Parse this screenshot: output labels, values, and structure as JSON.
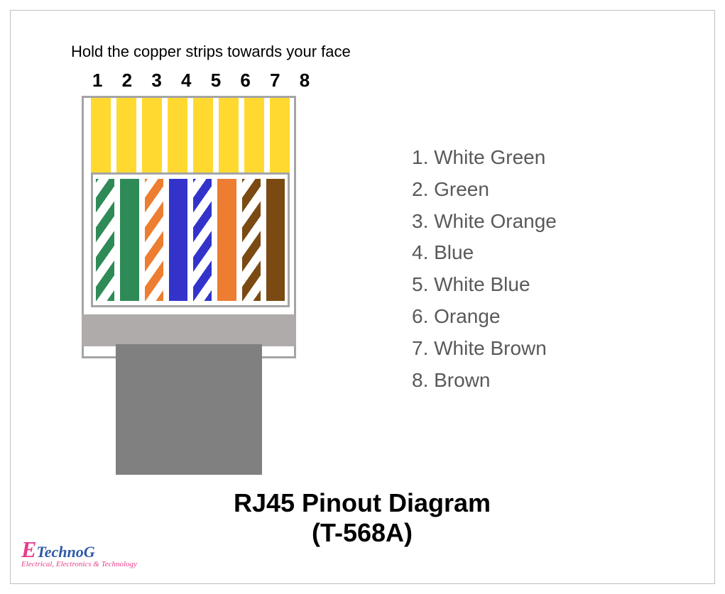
{
  "instruction": "Hold the copper strips towards your face",
  "pin_numbers": "1 2 3 4 5 6 7 8",
  "title_line1": "RJ45 Pinout Diagram",
  "title_line2": "(T-568A)",
  "logo_brand_E": "E",
  "logo_brand_rest": "TechnoG",
  "logo_tagline": "Electrical, Electronics & Technology",
  "contact_color": "#ffd92f",
  "connector": {
    "outline_color": "#a5a5a5",
    "strain_color": "#afabab",
    "cable_color": "#808080",
    "background": "#ffffff"
  },
  "wires": [
    {
      "striped": true,
      "color": "#2e8b57",
      "label": "White Green"
    },
    {
      "striped": false,
      "color": "#2e8b57",
      "label": "Green"
    },
    {
      "striped": true,
      "color": "#ed7d31",
      "label": "White Orange"
    },
    {
      "striped": false,
      "color": "#3333cc",
      "label": "Blue"
    },
    {
      "striped": true,
      "color": "#3333cc",
      "label": "White Blue"
    },
    {
      "striped": false,
      "color": "#ed7d31",
      "label": "Orange"
    },
    {
      "striped": true,
      "color": "#7b4a12",
      "label": "White Brown"
    },
    {
      "striped": false,
      "color": "#7b4a12",
      "label": "Brown"
    }
  ],
  "legend_color": "#595959",
  "legend_fontsize": 28
}
